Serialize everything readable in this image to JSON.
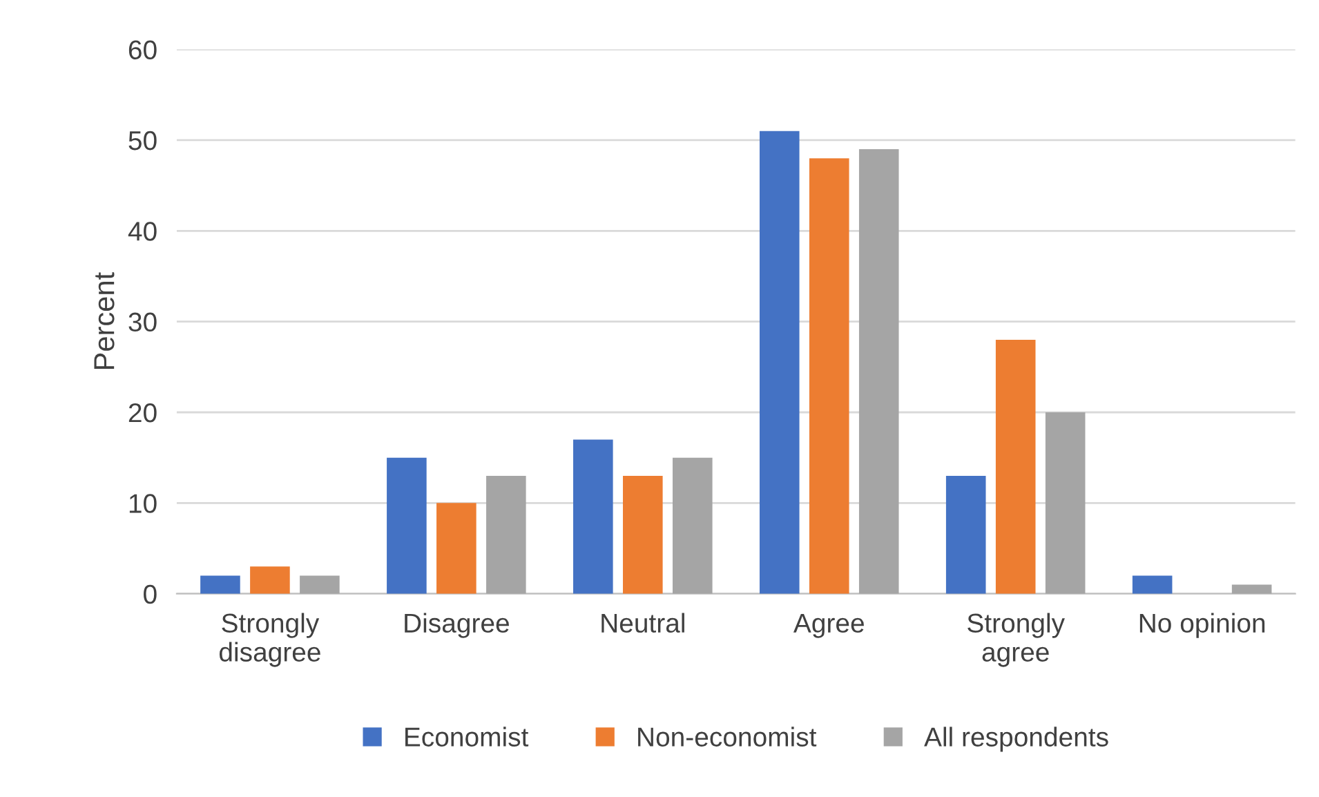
{
  "chart_data": {
    "type": "bar",
    "ylabel": "Percent",
    "categories": [
      "Strongly\ndisagree",
      "Disagree",
      "Neutral",
      "Agree",
      "Strongly\nagree",
      "No opinion"
    ],
    "series": [
      {
        "name": "Economist",
        "color": "#4472c4",
        "values": [
          2,
          15,
          17,
          51,
          13,
          2
        ]
      },
      {
        "name": "Non-economist",
        "color": "#ed7d31",
        "values": [
          3,
          10,
          13,
          48,
          28,
          0
        ]
      },
      {
        "name": "All respondents",
        "color": "#a5a5a5",
        "values": [
          2,
          13,
          15,
          49,
          20,
          1
        ]
      }
    ],
    "ylim": [
      0,
      60
    ],
    "yticks": [
      0,
      10,
      20,
      30,
      40,
      50,
      60
    ],
    "grid": "y",
    "legend": "bottom"
  }
}
